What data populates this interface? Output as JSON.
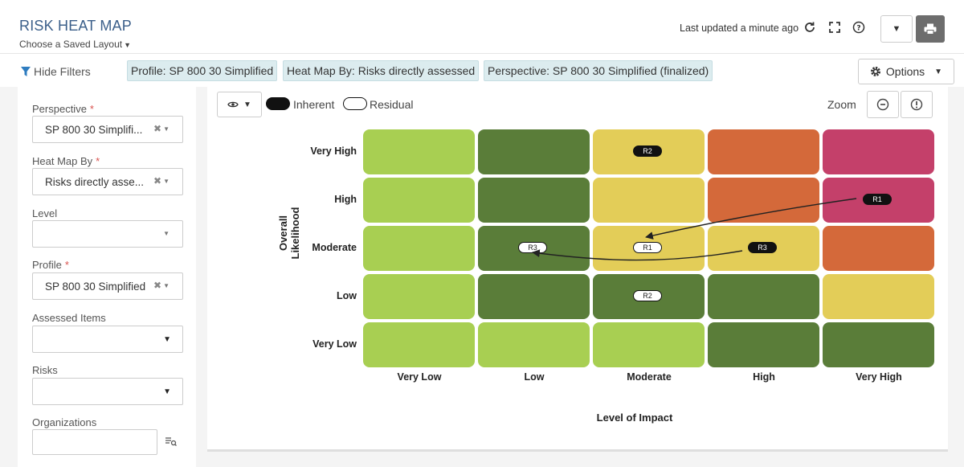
{
  "header": {
    "title": "RISK HEAT MAP",
    "saved_layout": "Choose a Saved Layout",
    "last_updated": "Last updated a minute ago"
  },
  "filters": {
    "hide_label": "Hide Filters",
    "chips": [
      "Profile: SP 800 30 Simplified",
      "Heat Map By: Risks directly assessed",
      "Perspective: SP 800 30 Simplified (finalized)"
    ],
    "options_label": "Options"
  },
  "sidebar": {
    "fields": [
      {
        "label": "Perspective",
        "required": "*",
        "value": "SP 800 30 Simplifi..."
      },
      {
        "label": "Heat Map By",
        "required": "*",
        "value": "Risks directly asse..."
      },
      {
        "label": "Level",
        "required": "",
        "value": ""
      },
      {
        "label": "Profile",
        "required": "*",
        "value": "SP 800 30 Simplified"
      },
      {
        "label": "Assessed Items",
        "required": "",
        "value": ""
      },
      {
        "label": "Risks",
        "required": "",
        "value": ""
      },
      {
        "label": "Organizations",
        "required": "",
        "value": ""
      }
    ]
  },
  "toolbar": {
    "legend_inherent": "Inherent",
    "legend_residual": "Residual",
    "zoom_label": "Zoom"
  },
  "heatmap": {
    "y_title": "Overall Likelihood",
    "x_title": "Level of Impact",
    "rows": [
      "Very High",
      "High",
      "Moderate",
      "Low",
      "Very Low"
    ],
    "cols": [
      "Very Low",
      "Low",
      "Moderate",
      "High",
      "Very High"
    ],
    "colors": {
      "light_green": "#a8cf52",
      "dark_green": "#5a7d39",
      "yellow": "#e3cd58",
      "orange": "#d4693a",
      "magenta": "#c4406a"
    },
    "grid": [
      [
        "light_green",
        "dark_green",
        "yellow",
        "orange",
        "magenta"
      ],
      [
        "light_green",
        "dark_green",
        "yellow",
        "orange",
        "magenta"
      ],
      [
        "light_green",
        "dark_green",
        "yellow",
        "yellow",
        "orange"
      ],
      [
        "light_green",
        "dark_green",
        "dark_green",
        "dark_green",
        "yellow"
      ],
      [
        "light_green",
        "light_green",
        "light_green",
        "dark_green",
        "dark_green"
      ]
    ],
    "markers": [
      {
        "label": "R2",
        "type": "inherent",
        "row": "Very High",
        "col": "Moderate"
      },
      {
        "label": "R1",
        "type": "inherent",
        "row": "High",
        "col": "Very High"
      },
      {
        "label": "R3",
        "type": "residual",
        "row": "Moderate",
        "col": "Low"
      },
      {
        "label": "R1",
        "type": "residual",
        "row": "Moderate",
        "col": "Moderate"
      },
      {
        "label": "R3",
        "type": "inherent",
        "row": "Moderate",
        "col": "High"
      },
      {
        "label": "R2",
        "type": "residual",
        "row": "Low",
        "col": "Moderate"
      }
    ]
  }
}
